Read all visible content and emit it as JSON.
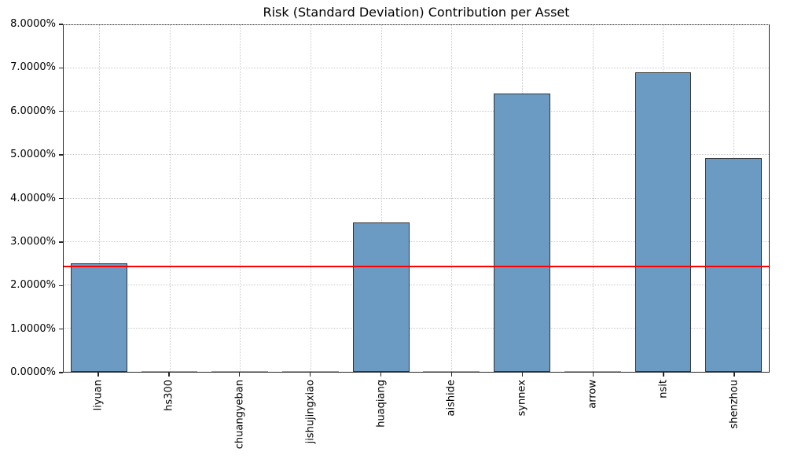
{
  "chart_data": {
    "type": "bar",
    "title": "Risk (Standard Deviation) Contribution per Asset",
    "categories": [
      "liyuan",
      "hs300",
      "chuangyeban",
      "jishujingxiao",
      "huaqiang",
      "aishide",
      "synnex",
      "arrow",
      "nsit",
      "shenzhou"
    ],
    "values": [
      2.5,
      0,
      0,
      0,
      3.44,
      0,
      6.43,
      0,
      6.92,
      4.94
    ],
    "unit": "%",
    "xlabel": "",
    "ylabel": "",
    "ylim": [
      0,
      8
    ],
    "ytick_step": 1,
    "ytick_labels": [
      "0.0000%",
      "1.0000%",
      "2.0000%",
      "3.0000%",
      "4.0000%",
      "5.0000%",
      "6.0000%",
      "7.0000%",
      "8.0000%"
    ],
    "grid": "dotted-both-axes",
    "legend": "none",
    "mean_line": {
      "value": 2.42,
      "color": "#ff0000"
    },
    "bar_color": "#6b9bc3",
    "bar_edge_color": "#333333",
    "bar_width_fraction": 0.8
  }
}
